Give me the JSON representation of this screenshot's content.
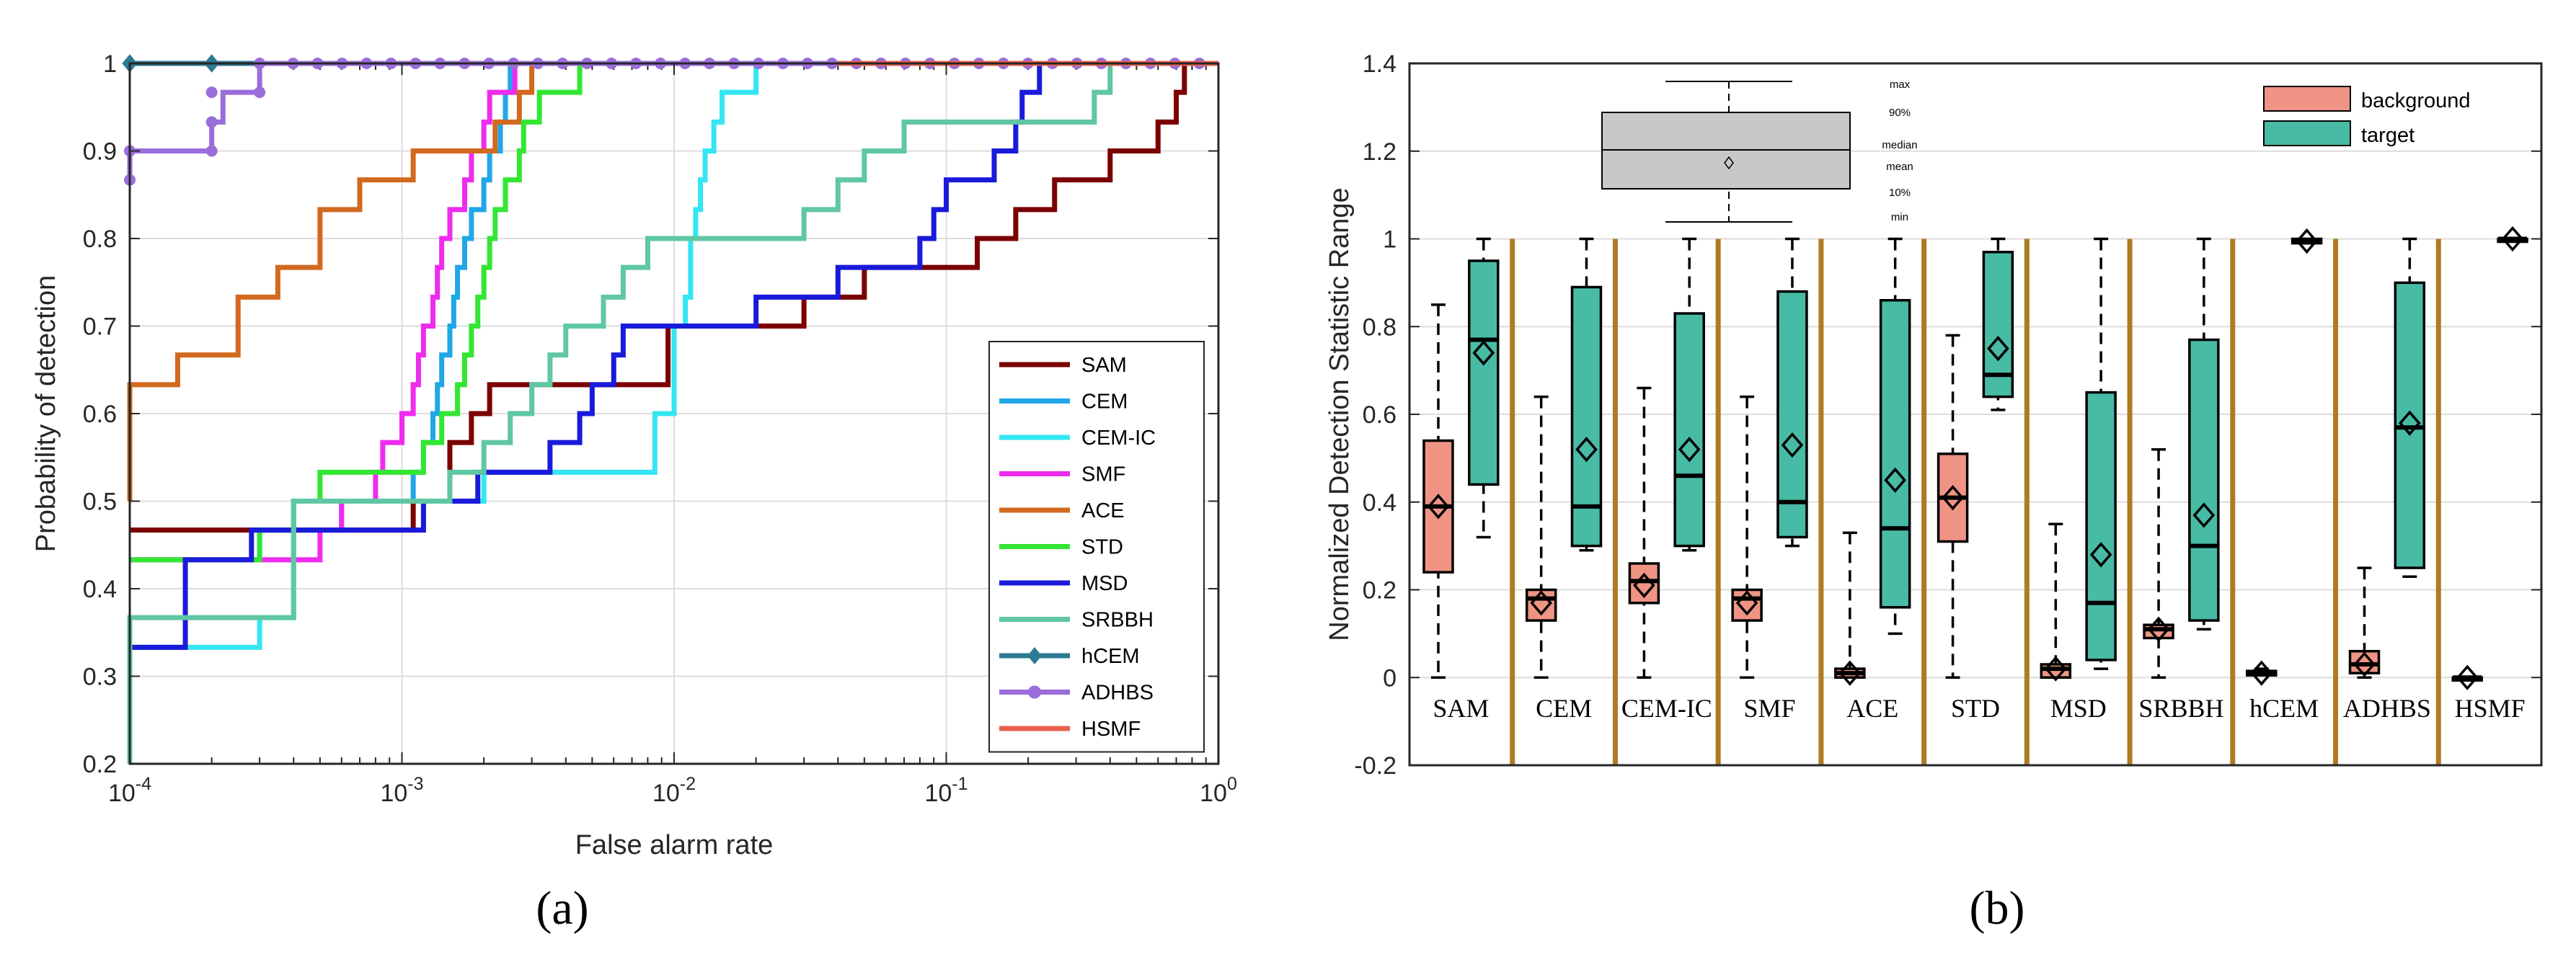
{
  "captions": [
    "(a)",
    "(b)"
  ],
  "chart_data": [
    {
      "type": "line",
      "xlabel": "False alarm rate",
      "ylabel": "Probability of detection",
      "xscale": "log",
      "xlim": [
        0.0001,
        1
      ],
      "ylim": [
        0.2,
        1
      ],
      "xticks": [
        "10^-4",
        "10^-3",
        "10^-2",
        "10^-1",
        "10^0"
      ],
      "yticks": [
        "0.2",
        "0.3",
        "0.4",
        "0.5",
        "0.6",
        "0.7",
        "0.8",
        "0.9",
        "1"
      ],
      "grid": true,
      "legend_position": "bottom-right",
      "series": [
        {
          "name": "SAM",
          "color": "#7b0000",
          "marker": "none",
          "points": [
            [
              0.0001,
              0.467
            ],
            [
              0.0003,
              0.467
            ],
            [
              0.0011,
              0.5
            ],
            [
              0.0015,
              0.567
            ],
            [
              0.0018,
              0.6
            ],
            [
              0.0021,
              0.633
            ],
            [
              0.0025,
              0.633
            ],
            [
              0.009,
              0.633
            ],
            [
              0.0095,
              0.7
            ],
            [
              0.011,
              0.7
            ],
            [
              0.025,
              0.7
            ],
            [
              0.03,
              0.733
            ],
            [
              0.05,
              0.767
            ],
            [
              0.13,
              0.8
            ],
            [
              0.18,
              0.833
            ],
            [
              0.25,
              0.867
            ],
            [
              0.4,
              0.9
            ],
            [
              0.6,
              0.933
            ],
            [
              0.7,
              0.967
            ],
            [
              0.75,
              1
            ],
            [
              1,
              1
            ]
          ]
        },
        {
          "name": "CEM",
          "color": "#1fa7e8",
          "marker": "none",
          "points": [
            [
              0.0001,
              0.433
            ],
            [
              0.0003,
              0.467
            ],
            [
              0.0006,
              0.5
            ],
            [
              0.0011,
              0.533
            ],
            [
              0.0012,
              0.567
            ],
            [
              0.0013,
              0.6
            ],
            [
              0.00135,
              0.633
            ],
            [
              0.0014,
              0.667
            ],
            [
              0.0015,
              0.7
            ],
            [
              0.00155,
              0.733
            ],
            [
              0.0016,
              0.767
            ],
            [
              0.0017,
              0.8
            ],
            [
              0.0018,
              0.833
            ],
            [
              0.002,
              0.867
            ],
            [
              0.0021,
              0.9
            ],
            [
              0.0023,
              0.933
            ],
            [
              0.0024,
              0.967
            ],
            [
              0.0025,
              1
            ],
            [
              1,
              1
            ]
          ]
        },
        {
          "name": "CEM-IC",
          "color": "#33e6f2",
          "marker": "none",
          "points": [
            [
              0.0001,
              0.333
            ],
            [
              0.0003,
              0.367
            ],
            [
              0.0004,
              0.5
            ],
            [
              0.0018,
              0.5
            ],
            [
              0.002,
              0.533
            ],
            [
              0.008,
              0.533
            ],
            [
              0.0085,
              0.6
            ],
            [
              0.01,
              0.7
            ],
            [
              0.011,
              0.733
            ],
            [
              0.0115,
              0.8
            ],
            [
              0.012,
              0.833
            ],
            [
              0.0125,
              0.867
            ],
            [
              0.013,
              0.9
            ],
            [
              0.014,
              0.933
            ],
            [
              0.015,
              0.967
            ],
            [
              0.02,
              1
            ],
            [
              1,
              1
            ]
          ]
        },
        {
          "name": "SMF",
          "color": "#ee2bee",
          "marker": "none",
          "points": [
            [
              0.0001,
              0.433
            ],
            [
              0.0003,
              0.433
            ],
            [
              0.0005,
              0.467
            ],
            [
              0.0006,
              0.5
            ],
            [
              0.0008,
              0.533
            ],
            [
              0.00085,
              0.567
            ],
            [
              0.001,
              0.6
            ],
            [
              0.0011,
              0.633
            ],
            [
              0.00115,
              0.667
            ],
            [
              0.0012,
              0.7
            ],
            [
              0.0013,
              0.733
            ],
            [
              0.00135,
              0.767
            ],
            [
              0.0014,
              0.8
            ],
            [
              0.0015,
              0.833
            ],
            [
              0.0017,
              0.867
            ],
            [
              0.0018,
              0.9
            ],
            [
              0.002,
              0.933
            ],
            [
              0.0021,
              0.967
            ],
            [
              0.0026,
              1
            ],
            [
              1,
              1
            ]
          ]
        },
        {
          "name": "ACE",
          "color": "#d2691e",
          "marker": "none",
          "points": [
            [
              0.0001,
              0.5
            ],
            [
              0.0001,
              0.633
            ],
            [
              0.00015,
              0.667
            ],
            [
              0.00025,
              0.733
            ],
            [
              0.00035,
              0.767
            ],
            [
              0.0005,
              0.833
            ],
            [
              0.0007,
              0.867
            ],
            [
              0.0011,
              0.9
            ],
            [
              0.0022,
              0.933
            ],
            [
              0.0027,
              0.967
            ],
            [
              0.003,
              1
            ],
            [
              1,
              1
            ]
          ]
        },
        {
          "name": "STD",
          "color": "#33e633",
          "marker": "none",
          "points": [
            [
              0.0001,
              0.433
            ],
            [
              0.0003,
              0.467
            ],
            [
              0.0004,
              0.5
            ],
            [
              0.0005,
              0.533
            ],
            [
              0.0009,
              0.533
            ],
            [
              0.0012,
              0.567
            ],
            [
              0.0014,
              0.6
            ],
            [
              0.0016,
              0.633
            ],
            [
              0.0017,
              0.667
            ],
            [
              0.0018,
              0.7
            ],
            [
              0.0019,
              0.733
            ],
            [
              0.002,
              0.767
            ],
            [
              0.0021,
              0.8
            ],
            [
              0.0022,
              0.833
            ],
            [
              0.0024,
              0.867
            ],
            [
              0.0027,
              0.9
            ],
            [
              0.0028,
              0.933
            ],
            [
              0.0032,
              0.967
            ],
            [
              0.0045,
              1
            ],
            [
              1,
              1
            ]
          ]
        },
        {
          "name": "MSD",
          "color": "#1a1adb",
          "marker": "none",
          "points": [
            [
              0.0001,
              0.333
            ],
            [
              0.00016,
              0.433
            ],
            [
              0.00028,
              0.467
            ],
            [
              0.0012,
              0.5
            ],
            [
              0.0019,
              0.533
            ],
            [
              0.0035,
              0.567
            ],
            [
              0.0045,
              0.6
            ],
            [
              0.005,
              0.633
            ],
            [
              0.006,
              0.667
            ],
            [
              0.0065,
              0.7
            ],
            [
              0.015,
              0.7
            ],
            [
              0.02,
              0.733
            ],
            [
              0.04,
              0.767
            ],
            [
              0.08,
              0.8
            ],
            [
              0.09,
              0.833
            ],
            [
              0.1,
              0.867
            ],
            [
              0.15,
              0.9
            ],
            [
              0.18,
              0.933
            ],
            [
              0.19,
              0.967
            ],
            [
              0.22,
              1
            ],
            [
              1,
              1
            ]
          ]
        },
        {
          "name": "SRBBH",
          "color": "#5fc7a3",
          "marker": "none",
          "points": [
            [
              0.0001,
              0.2
            ],
            [
              0.0001,
              0.367
            ],
            [
              0.0003,
              0.367
            ],
            [
              0.0004,
              0.5
            ],
            [
              0.0012,
              0.5
            ],
            [
              0.0015,
              0.533
            ],
            [
              0.002,
              0.567
            ],
            [
              0.0025,
              0.6
            ],
            [
              0.003,
              0.633
            ],
            [
              0.0035,
              0.667
            ],
            [
              0.004,
              0.7
            ],
            [
              0.0055,
              0.733
            ],
            [
              0.0065,
              0.767
            ],
            [
              0.008,
              0.8
            ],
            [
              0.022,
              0.8
            ],
            [
              0.03,
              0.833
            ],
            [
              0.04,
              0.867
            ],
            [
              0.05,
              0.9
            ],
            [
              0.07,
              0.933
            ],
            [
              0.3,
              0.933
            ],
            [
              0.35,
              0.967
            ],
            [
              0.4,
              1
            ],
            [
              1,
              1
            ]
          ]
        },
        {
          "name": "hCEM",
          "color": "#2d7a94",
          "marker": "diamond",
          "points": [
            [
              0.0001,
              1
            ],
            [
              0.0002,
              1
            ],
            [
              0.0003,
              1
            ],
            [
              1,
              1
            ]
          ]
        },
        {
          "name": "ADHBS",
          "color": "#9a6ddb",
          "marker": "circle",
          "points": [
            [
              0.0001,
              0.867
            ],
            [
              0.0001,
              0.9
            ],
            [
              0.0002,
              0.933
            ],
            [
              0.00022,
              0.967
            ],
            [
              0.0003,
              1
            ],
            [
              1,
              1
            ]
          ]
        },
        {
          "name": "HSMF",
          "color": "#e8604c",
          "marker": "none",
          "points": [
            [
              0.04,
              1
            ],
            [
              1,
              1
            ]
          ]
        }
      ]
    },
    {
      "type": "box",
      "ylabel": "Normalized Detection Statistic Range",
      "ylim": [
        -0.2,
        1.4
      ],
      "yticks": [
        "-0.2",
        "0",
        "0.2",
        "0.4",
        "0.6",
        "0.8",
        "1",
        "1.2",
        "1.4"
      ],
      "grid": true,
      "legend_position": "top-right",
      "series_names": [
        "background",
        "target"
      ],
      "series_colors": [
        "#ef9484",
        "#48bba5"
      ],
      "key_labels": [
        "max",
        "90%",
        "median",
        "mean",
        "10%",
        "min"
      ],
      "groups": [
        {
          "name": "SAM",
          "background": {
            "min": 0,
            "p10": 0.24,
            "median": 0.39,
            "mean": 0.39,
            "p90": 0.54,
            "max": 0.85
          },
          "target": {
            "min": 0.32,
            "p10": 0.44,
            "median": 0.77,
            "mean": 0.74,
            "p90": 0.95,
            "max": 1.0
          }
        },
        {
          "name": "CEM",
          "background": {
            "min": 0,
            "p10": 0.13,
            "median": 0.18,
            "mean": 0.17,
            "p90": 0.2,
            "max": 0.64
          },
          "target": {
            "min": 0.29,
            "p10": 0.3,
            "median": 0.39,
            "mean": 0.52,
            "p90": 0.89,
            "max": 1.0
          }
        },
        {
          "name": "CEM-IC",
          "background": {
            "min": 0,
            "p10": 0.17,
            "median": 0.22,
            "mean": 0.21,
            "p90": 0.26,
            "max": 0.66
          },
          "target": {
            "min": 0.29,
            "p10": 0.3,
            "median": 0.46,
            "mean": 0.52,
            "p90": 0.83,
            "max": 1.0
          }
        },
        {
          "name": "SMF",
          "background": {
            "min": 0,
            "p10": 0.13,
            "median": 0.18,
            "mean": 0.17,
            "p90": 0.2,
            "max": 0.64
          },
          "target": {
            "min": 0.3,
            "p10": 0.32,
            "median": 0.4,
            "mean": 0.53,
            "p90": 0.88,
            "max": 1.0
          }
        },
        {
          "name": "ACE",
          "background": {
            "min": 0,
            "p10": 0.0,
            "median": 0.01,
            "mean": 0.01,
            "p90": 0.02,
            "max": 0.33
          },
          "target": {
            "min": 0.1,
            "p10": 0.16,
            "median": 0.34,
            "mean": 0.45,
            "p90": 0.86,
            "max": 1.0
          }
        },
        {
          "name": "STD",
          "background": {
            "min": 0,
            "p10": 0.31,
            "median": 0.41,
            "mean": 0.41,
            "p90": 0.51,
            "max": 0.78
          },
          "target": {
            "min": 0.61,
            "p10": 0.64,
            "median": 0.69,
            "mean": 0.75,
            "p90": 0.97,
            "max": 1.0
          }
        },
        {
          "name": "MSD",
          "background": {
            "min": 0,
            "p10": 0.0,
            "median": 0.02,
            "mean": 0.02,
            "p90": 0.03,
            "max": 0.35
          },
          "target": {
            "min": 0.02,
            "p10": 0.04,
            "median": 0.17,
            "mean": 0.28,
            "p90": 0.65,
            "max": 1.0
          }
        },
        {
          "name": "SRBBH",
          "background": {
            "min": 0,
            "p10": 0.09,
            "median": 0.11,
            "mean": 0.11,
            "p90": 0.12,
            "max": 0.52
          },
          "target": {
            "min": 0.11,
            "p10": 0.13,
            "median": 0.3,
            "mean": 0.37,
            "p90": 0.77,
            "max": 1.0
          }
        },
        {
          "name": "hCEM",
          "background": {
            "min": 0.005,
            "p10": 0.005,
            "median": 0.01,
            "mean": 0.01,
            "p90": 0.015,
            "max": 0.02
          },
          "target": {
            "min": 0.99,
            "p10": 0.99,
            "median": 0.995,
            "mean": 0.995,
            "p90": 1.0,
            "max": 1.0
          }
        },
        {
          "name": "ADHBS",
          "background": {
            "min": 0,
            "p10": 0.01,
            "median": 0.03,
            "mean": 0.03,
            "p90": 0.06,
            "max": 0.25
          },
          "target": {
            "min": 0.23,
            "p10": 0.25,
            "median": 0.57,
            "mean": 0.58,
            "p90": 0.9,
            "max": 1.0
          }
        },
        {
          "name": "HSMF",
          "background": {
            "min": 0,
            "p10": 0,
            "median": 0,
            "mean": 0,
            "p90": 0,
            "max": 0
          },
          "target": {
            "min": 1.0,
            "p10": 1.0,
            "median": 1.0,
            "mean": 1.0,
            "p90": 1.0,
            "max": 1.0
          }
        }
      ]
    }
  ]
}
